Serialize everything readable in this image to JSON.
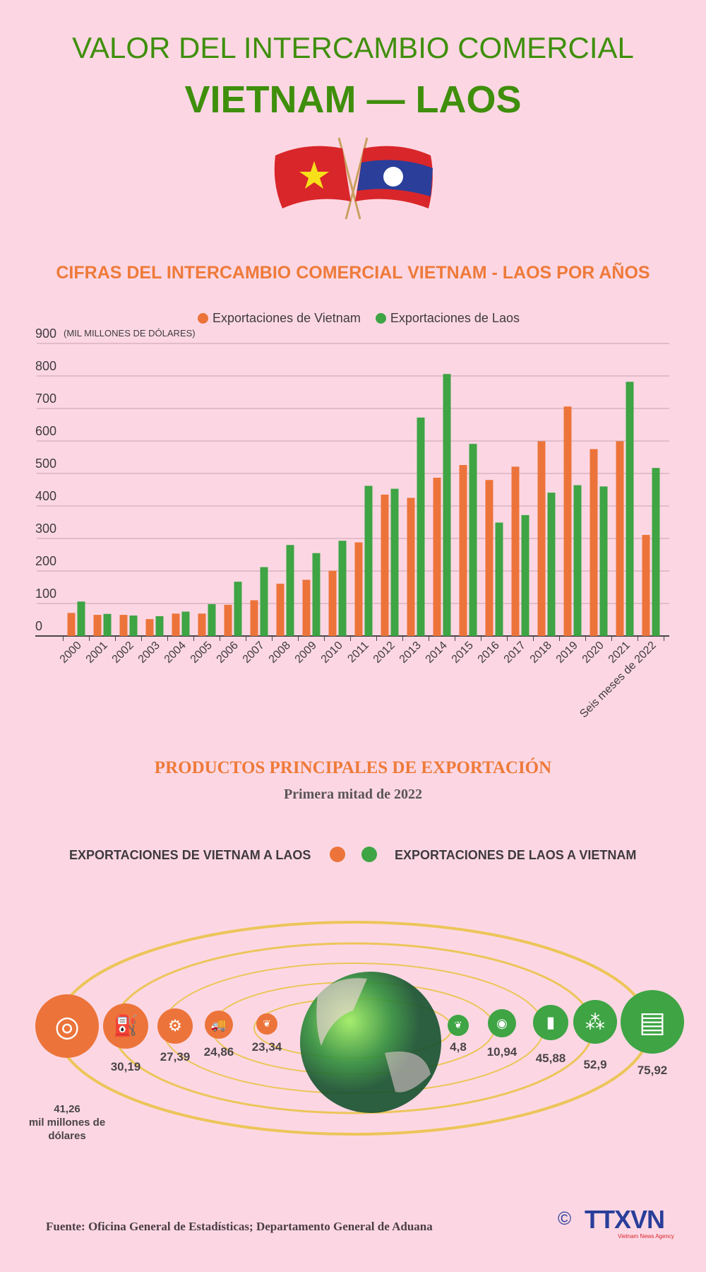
{
  "header": {
    "title_line1": "VALOR DEL INTERCAMBIO COMERCIAL",
    "title_line2": "VIETNAM — LAOS"
  },
  "colors": {
    "vietnam": "#ec743a",
    "laos": "#3ea444",
    "title_green": "#3f8f0c",
    "background": "#fcd7e3",
    "orbit": "#ecc55a"
  },
  "chart_data": {
    "type": "bar",
    "title": "CIFRAS DEL INTERCAMBIO COMERCIAL VIETNAM - LAOS POR AÑOS",
    "ylabel": "(MIL MILLONES DE DÓLARES)",
    "ylim": [
      0,
      900
    ],
    "yticks": [
      "0",
      "100",
      "200",
      "300",
      "400",
      "500",
      "600",
      "700",
      "800",
      "900"
    ],
    "grid": true,
    "legend_position": "top-center",
    "categories": [
      "2000",
      "2001",
      "2002",
      "2003",
      "2004",
      "2005",
      "2006",
      "2007",
      "2008",
      "2009",
      "2010",
      "2011",
      "2012",
      "2013",
      "2014",
      "2015",
      "2016",
      "2017",
      "2018",
      "2019",
      "2020",
      "2021",
      "Seis meses de 2022"
    ],
    "series": [
      {
        "name": "Exportaciones de Vietnam",
        "color": "#ec743a",
        "values": [
          71,
          65,
          65,
          52,
          69,
          69,
          96,
          110,
          161,
          173,
          201,
          288,
          435,
          425,
          487,
          526,
          480,
          521,
          599,
          706,
          575,
          599,
          311
        ]
      },
      {
        "name": "Exportaciones de Laos",
        "color": "#3ea444",
        "values": [
          106,
          68,
          63,
          61,
          75,
          98,
          167,
          212,
          280,
          255,
          293,
          462,
          453,
          672,
          806,
          591,
          349,
          372,
          441,
          464,
          460,
          782,
          517
        ]
      }
    ]
  },
  "products": {
    "title": "PRODUCTOS PRINCIPALES DE EXPORTACIÓN",
    "subtitle": "Primera mitad de 2022",
    "legend_vietnam": "EXPORTACIONES DE VIETNAM A LAOS",
    "legend_laos": "EXPORTACIONES DE LAOS A VIETNAM",
    "unit": "mil millones de dólares",
    "vietnam": [
      {
        "value": "41,26",
        "icon": "steel-icon"
      },
      {
        "value": "30,19",
        "icon": "oil-can-icon"
      },
      {
        "value": "27,39",
        "icon": "machinery-icon"
      },
      {
        "value": "24,86",
        "icon": "vehicle-icon"
      },
      {
        "value": "23,34",
        "icon": "vegetable-icon"
      }
    ],
    "laos": [
      {
        "value": "4,8",
        "icon": "vegetable-icon"
      },
      {
        "value": "10,94",
        "icon": "fertilizer-icon"
      },
      {
        "value": "45,88",
        "icon": "sack-icon"
      },
      {
        "value": "52,9",
        "icon": "ore-icon"
      },
      {
        "value": "75,92",
        "icon": "wood-icon"
      }
    ]
  },
  "footer": {
    "source": "Fuente: Oficina General de Estadísticas; Departamento General de Aduana",
    "logo": "TTXVN",
    "logo_sub": "Vietnam News Agency",
    "copyright": "©"
  }
}
